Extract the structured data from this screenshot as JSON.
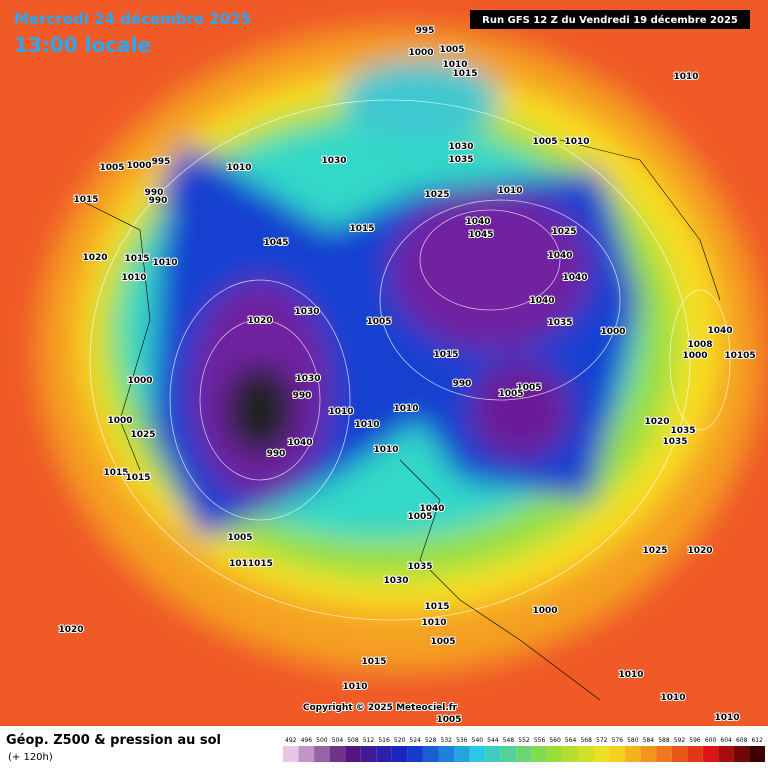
{
  "header": {
    "date": "Mercredi 24 décembre 2025",
    "time": "13:00 locale",
    "run": "Run GFS 12 Z du Vendredi 19 décembre 2025"
  },
  "footer": {
    "title": "Géop. Z500 & pression au sol",
    "lead": "(+ 120h)",
    "copyright": "Copyright © 2025 Meteociel.fr"
  },
  "scale": [
    492,
    496,
    500,
    504,
    508,
    512,
    516,
    520,
    524,
    528,
    532,
    536,
    540,
    544,
    548,
    552,
    556,
    560,
    564,
    568,
    572,
    576,
    580,
    584,
    588,
    592,
    596,
    600,
    604,
    608,
    612
  ],
  "pressure_labels": [
    "995",
    "1005",
    "1000",
    "1010",
    "1015",
    "1010",
    "1030",
    "1030",
    "1035",
    "1005",
    "1010",
    "1005",
    "1000",
    "995",
    "1010",
    "990",
    "990",
    "1015",
    "1025",
    "1010",
    "1040",
    "1045",
    "1025",
    "1040",
    "1045",
    "1015",
    "1020",
    "1015",
    "1010",
    "1010",
    "1040",
    "1040",
    "1035",
    "1030",
    "1005",
    "1020",
    "1000",
    "1040",
    "1008",
    "10105",
    "1000",
    "1015",
    "1000",
    "1030",
    "990",
    "990",
    "1005",
    "1005",
    "1010",
    "1010",
    "1010",
    "1000",
    "1025",
    "1020",
    "1035",
    "1035",
    "1040",
    "990",
    "1010",
    "1015",
    "1015",
    "1005",
    "1040",
    "1035",
    "1030",
    "1025",
    "1020",
    "1011015",
    "1015",
    "1010",
    "1005",
    "1000",
    "1020",
    "1015",
    "1010",
    "1010",
    "1010",
    "1005",
    "1010",
    "1005"
  ]
}
